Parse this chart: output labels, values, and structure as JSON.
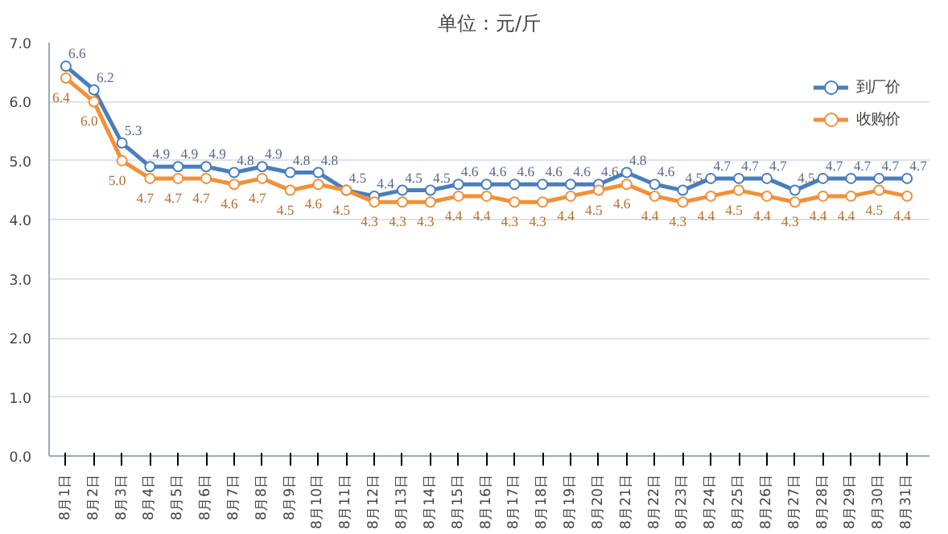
{
  "chart_data": {
    "type": "line",
    "title": "单位：元/斤",
    "categories": [
      "8月1日",
      "8月2日",
      "8月3日",
      "8月4日",
      "8月5日",
      "8月6日",
      "8月7日",
      "8月8日",
      "8月9日",
      "8月10日",
      "8月11日",
      "8月12日",
      "8月13日",
      "8月14日",
      "8月15日",
      "8月16日",
      "8月17日",
      "8月18日",
      "8月19日",
      "8月20日",
      "8月21日",
      "8月22日",
      "8月23日",
      "8月24日",
      "8月25日",
      "8月26日",
      "8月27日",
      "8月28日",
      "8月29日",
      "8月30日",
      "8月31日"
    ],
    "series": [
      {
        "name": "到厂价",
        "color": "#4a7ebb",
        "values": [
          6.6,
          6.2,
          5.3,
          4.9,
          4.9,
          4.9,
          4.8,
          4.9,
          4.8,
          4.8,
          4.5,
          4.4,
          4.5,
          4.5,
          4.6,
          4.6,
          4.6,
          4.6,
          4.6,
          4.6,
          4.8,
          4.6,
          4.5,
          4.7,
          4.7,
          4.7,
          4.5,
          4.7,
          4.7,
          4.7,
          4.7
        ],
        "value_labels": [
          "6.6",
          "6.2",
          "5.3",
          "4.9",
          "4.9",
          "4.9",
          "4.8",
          "4.9",
          "4.8",
          "4.8",
          "4.5",
          "4.4",
          "4.5",
          "4.5",
          "4.6",
          "4.6",
          "4.6",
          "4.6",
          "4.6",
          "4.6",
          "4.8",
          "4.6",
          "4.5",
          "4.7",
          "4.7",
          "4.7",
          "4.5",
          "4.7",
          "4.7",
          "4.7",
          "4.7"
        ]
      },
      {
        "name": "收购价",
        "color": "#f0913a",
        "values": [
          6.4,
          6.0,
          5.0,
          4.7,
          4.7,
          4.7,
          4.6,
          4.7,
          4.5,
          4.6,
          4.5,
          4.3,
          4.3,
          4.3,
          4.4,
          4.4,
          4.3,
          4.3,
          4.4,
          4.5,
          4.6,
          4.4,
          4.3,
          4.4,
          4.5,
          4.4,
          4.3,
          4.4,
          4.4,
          4.5,
          4.4
        ],
        "value_labels": [
          "6.4",
          "6.0",
          "5.0",
          "4.7",
          "4.7",
          "4.7",
          "4.6",
          "4.7",
          "4.5",
          "4.6",
          "4.5",
          "4.3",
          "4.3",
          "4.3",
          "4.4",
          "4.4",
          "4.3",
          "4.3",
          "4.4",
          "4.5",
          "4.6",
          "4.4",
          "4.3",
          "4.4",
          "4.5",
          "4.4",
          "4.3",
          "4.4",
          "4.4",
          "4.5",
          "4.4"
        ]
      }
    ],
    "ylim": [
      0,
      7
    ],
    "yticks": [
      {
        "value": 0,
        "label": "0.0"
      },
      {
        "value": 1,
        "label": "1.0"
      },
      {
        "value": 2,
        "label": "2.0"
      },
      {
        "value": 3,
        "label": "3.0"
      },
      {
        "value": 4,
        "label": "4.0"
      },
      {
        "value": 5,
        "label": "5.0"
      },
      {
        "value": 6,
        "label": "6.0"
      },
      {
        "value": 7,
        "label": "7.0"
      }
    ],
    "grid": "y",
    "legend": "top right",
    "marker": "circle",
    "line_style": "solid"
  }
}
